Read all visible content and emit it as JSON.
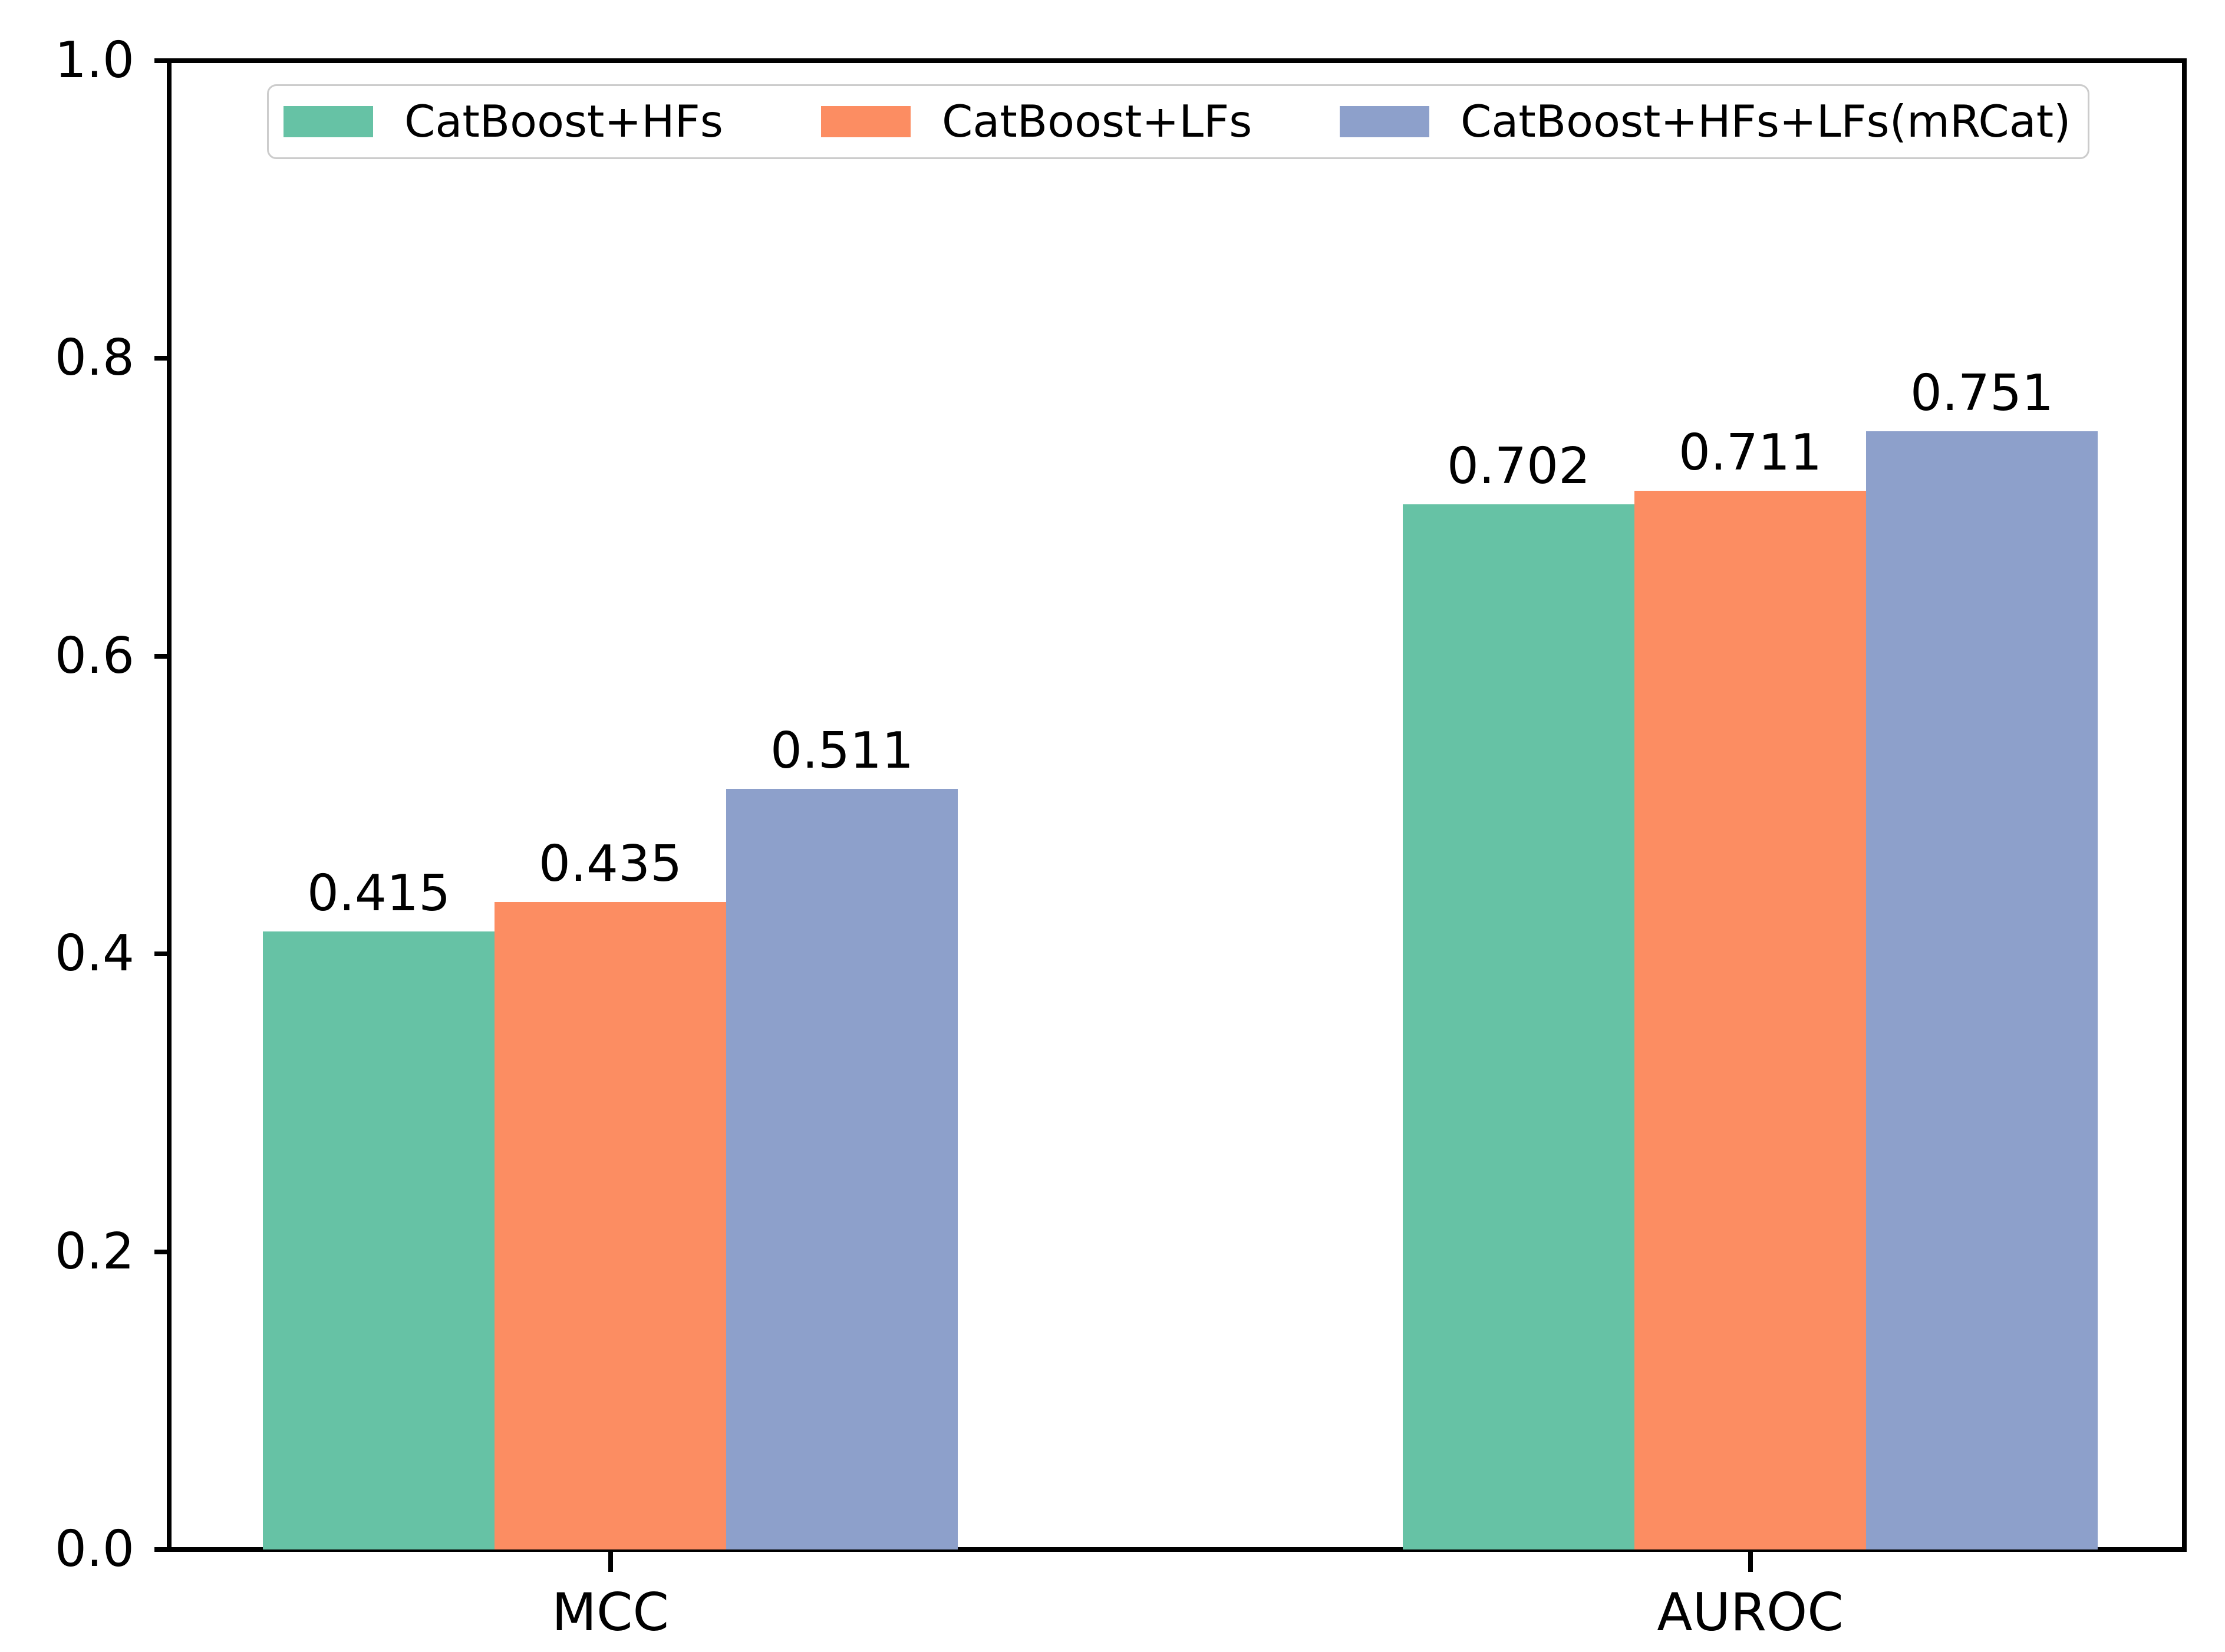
{
  "chart_data": {
    "type": "bar",
    "title": "",
    "xlabel": "",
    "ylabel": "",
    "categories": [
      "MCC",
      "AUROC"
    ],
    "series": [
      {
        "name": "CatBoost+HFs",
        "color": "#66c2a5",
        "values": [
          0.415,
          0.702
        ]
      },
      {
        "name": "CatBoost+LFs",
        "color": "#fc8d62",
        "values": [
          0.435,
          0.711
        ]
      },
      {
        "name": "CatBoost+HFs+LFs(mRCat)",
        "color": "#8da0cb",
        "values": [
          0.511,
          0.751
        ]
      }
    ],
    "bar_value_labels": [
      [
        "0.415",
        "0.435",
        "0.511"
      ],
      [
        "0.702",
        "0.711",
        "0.751"
      ]
    ],
    "ylim": [
      0.0,
      1.0
    ],
    "yticks": [
      "0.0",
      "0.2",
      "0.4",
      "0.6",
      "0.8",
      "1.0"
    ],
    "grid": false,
    "legend": {
      "position": "top",
      "orientation": "horizontal"
    },
    "axis_color": "#000000",
    "legend_border_color": "#cccccc"
  }
}
